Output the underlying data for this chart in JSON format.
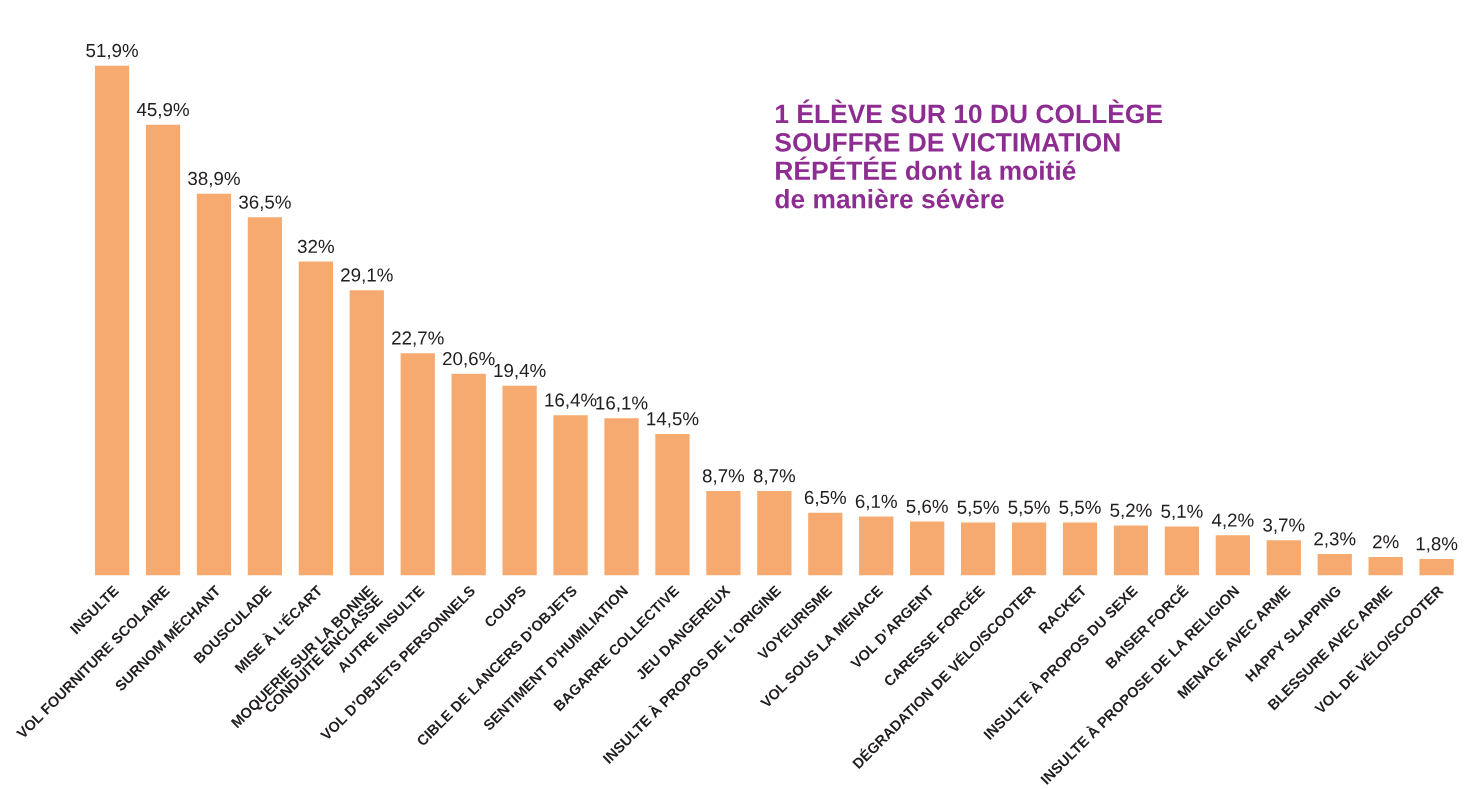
{
  "chart_data": {
    "type": "bar",
    "categories": [
      "INSULTE",
      "VOL FOURNITURE SCOLAIRE",
      "SURNOM MÉCHANT",
      "BOUSCULADE",
      "MISE À L’ÉCART",
      "MOQUERIE SUR LA BONNE\nCONDUITE ENCLASSE",
      "AUTRE INSULTE",
      "VOL D’OBJETS PERSONNELS",
      "COUPS",
      "CIBLE DE LANCERS D’OBJETS",
      "SENTIMENT D’HUMILIATION",
      "BAGARRE COLLECTIVE",
      "JEU DANGEREUX",
      "INSULTE À PROPOS DE L’ORIGINE",
      "VOYEURISME",
      "VOL SOUS LA MENACE",
      "VOL D’ARGENT",
      "CARESSE FORCÉE",
      "DÉGRADATION DE VÉLO/SCOOTER",
      "RACKET",
      "INSULTE À PROPOS DU SEXE",
      "BAISER FORCÉ",
      "INSULTE À PROPOSE DE LA RELIGION",
      "MENACE AVEC ARME",
      "HAPPY SLAPPING",
      "BLESSURE AVEC ARME",
      "VOL DE VÉLO/SCOOTER"
    ],
    "values": [
      51.9,
      45.9,
      38.9,
      36.5,
      32,
      29.1,
      22.7,
      20.6,
      19.4,
      16.4,
      16.1,
      14.5,
      8.7,
      8.7,
      6.5,
      6.1,
      5.6,
      5.5,
      5.5,
      5.5,
      5.2,
      5.1,
      4.2,
      3.7,
      2.3,
      2,
      1.8
    ],
    "value_labels": [
      "51,9%",
      "45,9%",
      "38,9%",
      "36,5%",
      "32%",
      "29,1%",
      "22,7%",
      "20,6%",
      "19,4%",
      "16,4%",
      "16,1%",
      "14,5%",
      "8,7%",
      "8,7%",
      "6,5%",
      "6,1%",
      "5,6%",
      "5,5%",
      "5,5%",
      "5,5%",
      "5,2%",
      "5,1%",
      "4,2%",
      "3,7%",
      "2,3%",
      "2%",
      "1,8%"
    ],
    "color": "#f7aa6f",
    "annotations": [
      "1 ÉLÈVE SUR 10 DU COLLÈGE\nSOUFFRE DE VICTIMATION\nRÉPÉTÉE dont la moitié\nde manière sévère"
    ],
    "grid": false,
    "legend": false
  }
}
